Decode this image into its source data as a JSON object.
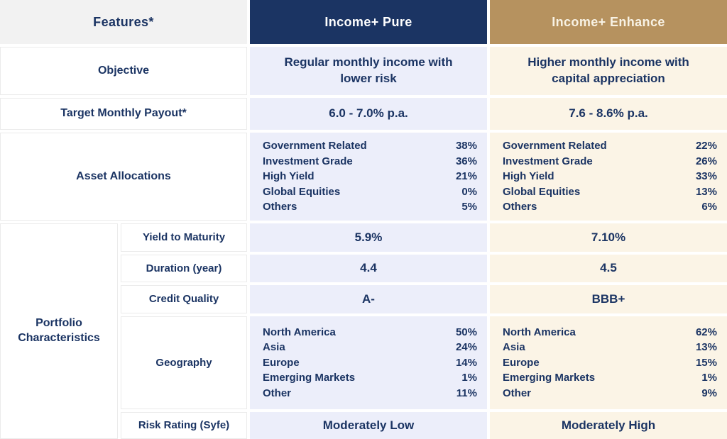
{
  "colors": {
    "navy": "#1B3463",
    "tan": "#B6925F",
    "lavender": "#ECEEFA",
    "cream": "#FBF4E6",
    "header_gray": "#F2F2F2",
    "cell_border": "#EBEBEB",
    "pure_header_text": "#FFFFFF",
    "enhance_header_text": "#F8F2E4",
    "text": "#1B3463"
  },
  "ui": {
    "header": {
      "features": "Features*",
      "pure": "Income+ Pure",
      "enhance": "Income+ Enhance"
    },
    "objective": {
      "label": "Objective",
      "pure": "Regular monthly income with lower risk",
      "enhance": "Higher monthly income with capital appreciation"
    },
    "target_payout": {
      "label": "Target Monthly Payout*",
      "pure": "6.0 - 7.0% p.a.",
      "enhance": "7.6 - 8.6% p.a."
    },
    "asset_allocations": {
      "label": "Asset Allocations",
      "pure": [
        {
          "label": "Government Related",
          "value": "38%"
        },
        {
          "label": "Investment Grade",
          "value": "36%"
        },
        {
          "label": "High Yield",
          "value": "21%"
        },
        {
          "label": "Global Equities",
          "value": "0%"
        },
        {
          "label": "Others",
          "value": "5%"
        }
      ],
      "enhance": [
        {
          "label": "Government Related",
          "value": "22%"
        },
        {
          "label": "Investment Grade",
          "value": "26%"
        },
        {
          "label": "High Yield",
          "value": "33%"
        },
        {
          "label": "Global Equities",
          "value": "13%"
        },
        {
          "label": "Others",
          "value": "6%"
        }
      ]
    },
    "portfolio_characteristics": {
      "label": "Portfolio Characteristics",
      "yield_to_maturity": {
        "label": "Yield to Maturity",
        "pure": "5.9%",
        "enhance": "7.10%"
      },
      "duration": {
        "label": "Duration (year)",
        "pure": "4.4",
        "enhance": "4.5"
      },
      "credit_quality": {
        "label": "Credit Quality",
        "pure": "A-",
        "enhance": "BBB+"
      },
      "geography": {
        "label": "Geography",
        "pure": [
          {
            "label": "North America",
            "value": "50%"
          },
          {
            "label": "Asia",
            "value": "24%"
          },
          {
            "label": "Europe",
            "value": "14%"
          },
          {
            "label": "Emerging Markets",
            "value": "1%"
          },
          {
            "label": "Other",
            "value": "11%"
          }
        ],
        "enhance": [
          {
            "label": "North America",
            "value": "62%"
          },
          {
            "label": "Asia",
            "value": "13%"
          },
          {
            "label": "Europe",
            "value": "15%"
          },
          {
            "label": "Emerging Markets",
            "value": "1%"
          },
          {
            "label": "Other",
            "value": "9%"
          }
        ]
      },
      "risk_rating": {
        "label": "Risk Rating (Syfe)",
        "pure": "Moderately Low",
        "enhance": "Moderately High"
      }
    }
  },
  "chart_data": {
    "type": "table",
    "title": "Income+ Pure vs Income+ Enhance feature comparison",
    "columns": [
      "Features*",
      "Income+ Pure",
      "Income+ Enhance"
    ],
    "rows": [
      [
        "Objective",
        "Regular monthly income with lower risk",
        "Higher monthly income with capital appreciation"
      ],
      [
        "Target Monthly Payout*",
        "6.0 - 7.0% p.a.",
        "7.6 - 8.6% p.a."
      ],
      [
        "Asset Allocations — Government Related",
        "38%",
        "22%"
      ],
      [
        "Asset Allocations — Investment Grade",
        "36%",
        "26%"
      ],
      [
        "Asset Allocations — High Yield",
        "21%",
        "33%"
      ],
      [
        "Asset Allocations — Global Equities",
        "0%",
        "13%"
      ],
      [
        "Asset Allocations — Others",
        "5%",
        "6%"
      ],
      [
        "Portfolio Characteristics — Yield to Maturity",
        "5.9%",
        "7.10%"
      ],
      [
        "Portfolio Characteristics — Duration (year)",
        "4.4",
        "4.5"
      ],
      [
        "Portfolio Characteristics — Credit Quality",
        "A-",
        "BBB+"
      ],
      [
        "Portfolio Characteristics — Geography — North America",
        "50%",
        "62%"
      ],
      [
        "Portfolio Characteristics — Geography — Asia",
        "24%",
        "13%"
      ],
      [
        "Portfolio Characteristics — Geography — Europe",
        "14%",
        "15%"
      ],
      [
        "Portfolio Characteristics — Geography — Emerging Markets",
        "1%",
        "1%"
      ],
      [
        "Portfolio Characteristics — Geography — Other",
        "11%",
        "9%"
      ],
      [
        "Portfolio Characteristics — Risk Rating (Syfe)",
        "Moderately Low",
        "Moderately High"
      ]
    ]
  }
}
